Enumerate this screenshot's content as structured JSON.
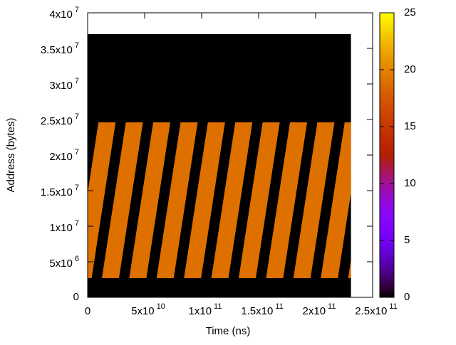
{
  "chart_data": {
    "type": "heatmap",
    "xlabel": "Time (ns)",
    "ylabel": "Address (bytes)",
    "xlim": [
      0,
      250000000000
    ],
    "ylim": [
      0,
      40000000
    ],
    "xticks": [
      0,
      {
        "value": 50000000000,
        "label": "5x10",
        "exp": "10"
      },
      {
        "value": 100000000000,
        "label": "1x10",
        "exp": "11"
      },
      {
        "value": 150000000000,
        "label": "1.5x10",
        "exp": "11"
      },
      {
        "value": 200000000000,
        "label": "2x10",
        "exp": "11"
      },
      {
        "value": 250000000000,
        "label": "2.5x10",
        "exp": "11"
      }
    ],
    "yticks": [
      0,
      {
        "value": 5000000,
        "label": "5x10",
        "exp": "6"
      },
      {
        "value": 10000000,
        "label": "1x10",
        "exp": "7"
      },
      {
        "value": 15000000,
        "label": "1.5x10",
        "exp": "7"
      },
      {
        "value": 20000000,
        "label": "2x10",
        "exp": "7"
      },
      {
        "value": 25000000,
        "label": "2.5x10",
        "exp": "7"
      },
      {
        "value": 30000000,
        "label": "3x10",
        "exp": "7"
      },
      {
        "value": 35000000,
        "label": "3.5x10",
        "exp": "7"
      },
      {
        "value": 40000000,
        "label": "4x10",
        "exp": "7"
      }
    ],
    "cblim": [
      0,
      25
    ],
    "cbticks": [
      0,
      5,
      10,
      15,
      20,
      25
    ],
    "background": {
      "x": [
        0,
        231000000000
      ],
      "y": [
        0,
        37000000
      ],
      "value": 0
    },
    "stripes": {
      "x_bottom": [
        -11500000000,
        12500000000,
        36500000000,
        60500000000,
        84500000000,
        108500000000,
        132500000000,
        156500000000,
        180500000000,
        204500000000,
        228500000000
      ],
      "shift": 21000000000,
      "width": 15000000000,
      "y": [
        2700000,
        24600000
      ],
      "value": 19
    }
  }
}
